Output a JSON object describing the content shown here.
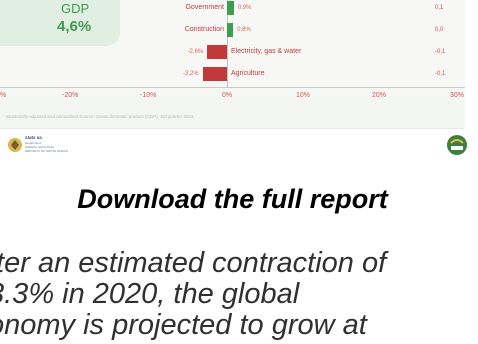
{
  "infographic": {
    "gdp_label": "GDP",
    "gdp_value": "4,6%",
    "note": "Seasonally adjusted and annualised   Source: Gross domestic product (GDP), 3rd quarter 2023",
    "logo_name": "stats sa",
    "logo_sub": [
      "Department:",
      "Statistics South Africa",
      "REPUBLIC OF SOUTH AFRICA"
    ],
    "colors": {
      "positive": "#3f9a52",
      "negative": "#c0393b",
      "gdp_bg": "#e1efe2"
    }
  },
  "chart_data": {
    "type": "bar",
    "orientation": "horizontal",
    "categories": [
      "Government",
      "Construction",
      "Electricity, gas & water",
      "Agriculture"
    ],
    "values": [
      0.9,
      0.8,
      -2.6,
      -3.2
    ],
    "value_labels": [
      "0,9%",
      "0,8%",
      "-2,6%",
      "-3,2%"
    ],
    "right_values": [
      "0,1",
      "0,0",
      "-0,1",
      "-0,1"
    ],
    "x_ticks": [
      "%",
      "-20%",
      "-10%",
      "0%",
      "10%",
      "20%",
      "30%"
    ],
    "xlim": [
      -30,
      30
    ],
    "grid": true
  },
  "article": {
    "download_link": "Download the full report",
    "body_lines": [
      "fter an estimated contraction of",
      "3.3% in 2020, the global",
      "onomy is projected to grow at"
    ]
  }
}
